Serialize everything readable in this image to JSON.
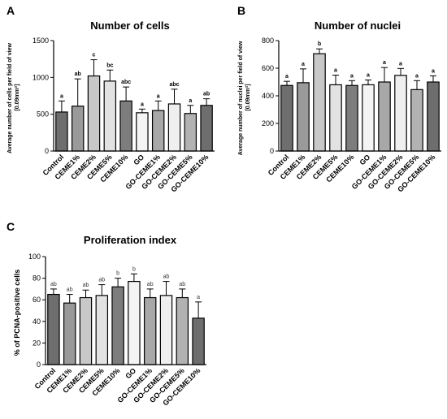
{
  "categories_common": [
    "Control",
    "CEME1%",
    "CEME2%",
    "CEME5%",
    "CEME10%",
    "GO",
    "GO-CEME1%",
    "GO-CEME2%",
    "GO-CEME5%",
    "GO-CEME10%"
  ],
  "colors": {
    "Control": "#6e6e6e",
    "CEME1%": "#9a9a9a",
    "CEME2%": "#c8c8c8",
    "CEME5%": "#e2e2e2",
    "CEME10%": "#7d7d7d",
    "GO": "#f4f4f4",
    "GO-CEME1%": "#a8a8a8",
    "GO-CEME2%": "#efefef",
    "GO-CEME5%": "#b2b2b2",
    "GO-CEME10%": "#6e6e6e"
  },
  "chart_data": [
    {
      "panel": "A",
      "type": "bar",
      "title": "Number of cells",
      "ylabel": "Average number of cells per field of view [0.09mm²]",
      "ylim": [
        0,
        1500
      ],
      "yticks": [
        0,
        500,
        1000,
        1500
      ],
      "categories": [
        "Control",
        "CEME1%",
        "CEME2%",
        "CEME5%",
        "CEME10%",
        "GO",
        "GO-CEME1%",
        "GO-CEME2%",
        "GO-CEME5%",
        "GO-CEME10%"
      ],
      "values": [
        530,
        610,
        1020,
        950,
        680,
        520,
        550,
        640,
        510,
        620
      ],
      "errors": [
        150,
        370,
        220,
        150,
        190,
        50,
        130,
        200,
        110,
        90
      ],
      "significance": [
        "a",
        "ab",
        "c",
        "bc",
        "abc",
        "a",
        "a",
        "abc",
        "a",
        "ab"
      ]
    },
    {
      "panel": "B",
      "type": "bar",
      "title": "Number of nuclei",
      "ylabel": "Average number of nuclei per field of view [0.09mm²]",
      "ylim": [
        0,
        800
      ],
      "yticks": [
        0,
        200,
        400,
        600,
        800
      ],
      "categories": [
        "Control",
        "CEME1%",
        "CEME2%",
        "CEME5%",
        "CEME10%",
        "GO",
        "GO-CEME1%",
        "GO-CEME2%",
        "GO-CEME5%",
        "GO-CEME10%"
      ],
      "values": [
        475,
        495,
        705,
        480,
        475,
        480,
        500,
        548,
        445,
        500
      ],
      "errors": [
        30,
        100,
        35,
        70,
        35,
        35,
        105,
        50,
        65,
        45
      ],
      "significance": [
        "a",
        "a",
        "b",
        "a",
        "a",
        "a",
        "a",
        "a",
        "a",
        "a"
      ]
    },
    {
      "panel": "C",
      "type": "bar",
      "title": "Proliferation index",
      "ylabel": "% of PCNA-positive cells",
      "ylim": [
        0,
        100
      ],
      "yticks": [
        0,
        20,
        40,
        60,
        80,
        100
      ],
      "categories": [
        "Control",
        "CEME1%",
        "CEME2%",
        "CEME5%",
        "CEME10%",
        "GO",
        "GO-CEME1%",
        "GO-CEME2%",
        "GO-CEME5%",
        "GO-CEME10%"
      ],
      "values": [
        65,
        57,
        62,
        64,
        72,
        77,
        62,
        64,
        62,
        43
      ],
      "errors": [
        5,
        8,
        7,
        10,
        8,
        7,
        8,
        13,
        8,
        15
      ],
      "significance": [
        "ab",
        "ab",
        "ab",
        "ab",
        "b",
        "b",
        "ab",
        "ab",
        "ab",
        "a"
      ]
    }
  ]
}
